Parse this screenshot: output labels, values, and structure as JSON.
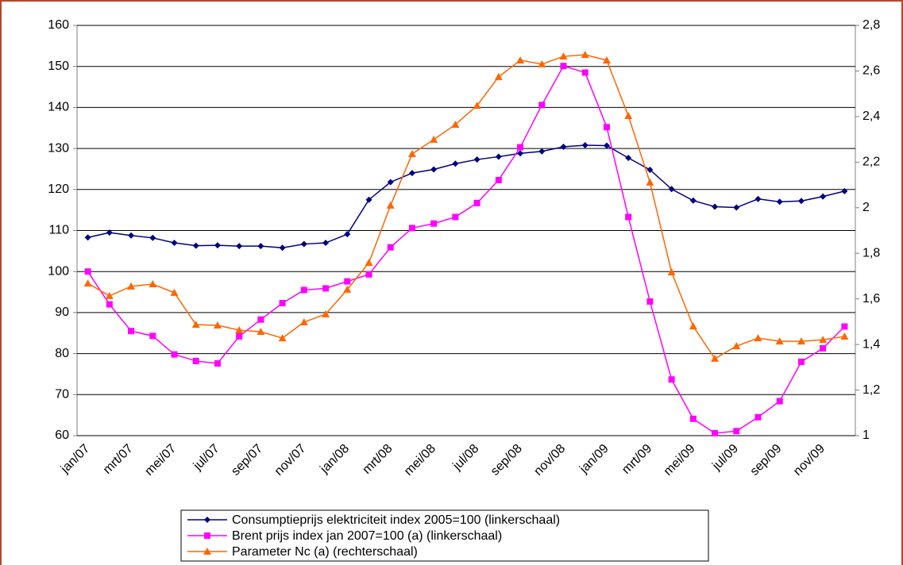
{
  "chart_data": {
    "type": "line",
    "categories": [
      "jan/07",
      null,
      "mrt/07",
      null,
      "mei/07",
      null,
      "jul/07",
      null,
      "sep/07",
      null,
      "nov/07",
      null,
      "jan/08",
      null,
      "mrt/08",
      null,
      "mei/08",
      null,
      "jul/08",
      null,
      "sep/08",
      null,
      "nov/08",
      null,
      "jan/09",
      null,
      "mrt/09",
      null,
      "mei/09",
      null,
      "jul/09",
      null,
      "sep/09",
      null,
      "nov/09",
      null
    ],
    "series": [
      {
        "name": "Consumptieprijs elektriciteit index 2005=100 (linkerschaal)",
        "color": "#000080",
        "marker": "diamond",
        "values": [
          108.3,
          109.5,
          108.8,
          108.2,
          107,
          106.3,
          106.4,
          106.2,
          106.2,
          105.8,
          106.7,
          107,
          109.1,
          117.5,
          121.8,
          124,
          124.9,
          126.3,
          127.3,
          128,
          128.8,
          129.3,
          130.4,
          130.8,
          130.7,
          127.7,
          124.8,
          120.1,
          117.3,
          115.8,
          115.6,
          117.7,
          117,
          117.2,
          118.3,
          119.6
        ]
      },
      {
        "name": "Brent prijs index jan 2007=100 (a) (linkerschaal)",
        "color": "#ff00ff",
        "marker": "square",
        "values": [
          100,
          92,
          85.5,
          84.3,
          79.8,
          78.2,
          77.6,
          84.2,
          88.3,
          92.3,
          95.5,
          95.9,
          97.6,
          99.3,
          105.9,
          110.6,
          111.7,
          113.3,
          116.7,
          122.3,
          130.3,
          140.6,
          150.1,
          148.5,
          135.2,
          113.3,
          92.7,
          73.7,
          64.1,
          60.6,
          61.1,
          64.5,
          68.4,
          78,
          81.3,
          86.6
        ]
      },
      {
        "name": "Parameter Nc (a) (rechterschaal)",
        "color": "#ff6600",
        "marker": "triangle",
        "axis": "y2",
        "values": [
          1.668,
          1.613,
          1.655,
          1.665,
          1.627,
          1.487,
          1.484,
          1.463,
          1.456,
          1.428,
          1.498,
          1.533,
          1.641,
          1.759,
          2.01,
          2.236,
          2.299,
          2.365,
          2.448,
          2.574,
          2.647,
          2.63,
          2.664,
          2.671,
          2.647,
          2.403,
          2.111,
          1.717,
          1.48,
          1.338,
          1.393,
          1.428,
          1.414,
          1.414,
          1.421,
          1.435
        ]
      }
    ],
    "ylim": [
      60,
      160
    ],
    "yticks": [
      60,
      70,
      80,
      90,
      100,
      110,
      120,
      130,
      140,
      150,
      160
    ],
    "y2lim": [
      1,
      2.8
    ],
    "y2ticks": [
      1,
      {
        "value": 1.2,
        "label": "1,2"
      },
      {
        "value": 1.4,
        "label": "1,4"
      },
      {
        "value": 1.6,
        "label": "1,6"
      },
      {
        "value": 1.8,
        "label": "1,8"
      },
      2,
      {
        "value": 2.2,
        "label": "2,2"
      },
      {
        "value": 2.4,
        "label": "2,4"
      },
      {
        "value": 2.6,
        "label": "2,6"
      },
      {
        "value": 2.8,
        "label": "2,8"
      }
    ],
    "grid": true,
    "legend": "bottom"
  }
}
